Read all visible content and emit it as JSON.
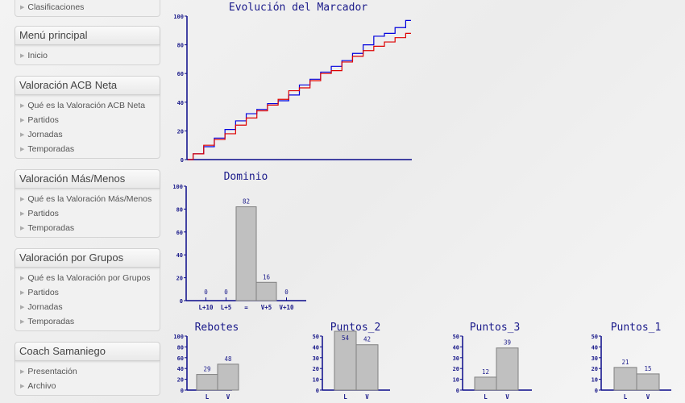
{
  "sidebar": {
    "boxes": [
      {
        "title": "",
        "items": [
          "Clasificaciones"
        ]
      },
      {
        "title": "Menú principal",
        "items": [
          "Inicio"
        ]
      },
      {
        "title": "Valoración ACB Neta",
        "items": [
          "Qué es la Valoración ACB Neta",
          "Partidos",
          "Jornadas",
          "Temporadas"
        ]
      },
      {
        "title": "Valoración Más/Menos",
        "items": [
          "Qué es la Valoración Más/Menos",
          "Partidos",
          "Temporadas"
        ]
      },
      {
        "title": "Valoración por Grupos",
        "items": [
          "Qué es la Valoración por Grupos",
          "Partidos",
          "Jornadas",
          "Temporadas"
        ]
      },
      {
        "title": "Coach Samaniego",
        "items": [
          "Presentación",
          "Archivo"
        ]
      }
    ]
  },
  "chart_data": [
    {
      "type": "line",
      "title": "Evolución del Marcador",
      "ylim": [
        0,
        100
      ],
      "yticks": [
        0,
        20,
        40,
        60,
        80,
        100
      ],
      "grid": false,
      "series": [
        {
          "color": "#0000dd",
          "values": [
            0,
            4,
            9,
            15,
            21,
            27,
            32,
            35,
            39,
            41,
            45,
            52,
            56,
            61,
            65,
            69,
            74,
            80,
            86,
            88,
            92,
            97
          ]
        },
        {
          "color": "#dd0000",
          "values": [
            0,
            4,
            10,
            14,
            18,
            24,
            29,
            34,
            38,
            42,
            48,
            50,
            55,
            60,
            62,
            68,
            72,
            76,
            79,
            82,
            85,
            88
          ]
        }
      ]
    },
    {
      "type": "bar",
      "title": "Dominio",
      "categories": [
        "L+10",
        "L+5",
        "=",
        "V+5",
        "V+10"
      ],
      "values": [
        0,
        0,
        82,
        16,
        0
      ],
      "ylim": [
        0,
        100
      ],
      "yticks": [
        0,
        20,
        40,
        60,
        80,
        100
      ]
    },
    {
      "type": "bar",
      "title": "Rebotes",
      "categories": [
        "L",
        "V"
      ],
      "values": [
        29,
        48
      ],
      "ylim": [
        0,
        100
      ],
      "yticks": [
        0,
        20,
        40,
        60,
        80,
        100
      ]
    },
    {
      "type": "bar",
      "title": "Puntos_2",
      "categories": [
        "L",
        "V"
      ],
      "values": [
        54,
        42
      ],
      "ylim": [
        0,
        50
      ],
      "yticks": [
        0,
        10,
        20,
        30,
        40,
        50
      ]
    },
    {
      "type": "bar",
      "title": "Puntos_3",
      "categories": [
        "L",
        "V"
      ],
      "values": [
        12,
        39
      ],
      "ylim": [
        0,
        50
      ],
      "yticks": [
        0,
        10,
        20,
        30,
        40,
        50
      ]
    },
    {
      "type": "bar",
      "title": "Puntos_1",
      "categories": [
        "L",
        "V"
      ],
      "values": [
        21,
        15
      ],
      "ylim": [
        0,
        50
      ],
      "yticks": [
        0,
        10,
        20,
        30,
        40,
        50
      ]
    }
  ]
}
